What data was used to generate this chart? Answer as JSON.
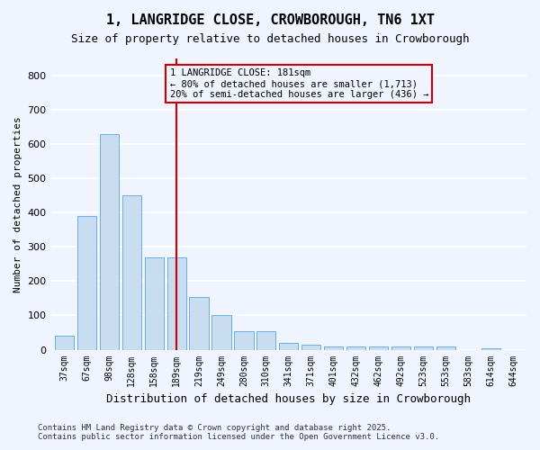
{
  "title": "1, LANGRIDGE CLOSE, CROWBOROUGH, TN6 1XT",
  "subtitle": "Size of property relative to detached houses in Crowborough",
  "xlabel": "Distribution of detached houses by size in Crowborough",
  "ylabel": "Number of detached properties",
  "categories": [
    "37sqm",
    "67sqm",
    "98sqm",
    "128sqm",
    "158sqm",
    "189sqm",
    "219sqm",
    "249sqm",
    "280sqm",
    "310sqm",
    "341sqm",
    "371sqm",
    "401sqm",
    "432sqm",
    "462sqm",
    "492sqm",
    "523sqm",
    "553sqm",
    "583sqm",
    "614sqm",
    "644sqm"
  ],
  "values": [
    40,
    390,
    630,
    450,
    270,
    270,
    155,
    100,
    55,
    55,
    20,
    15,
    10,
    10,
    10,
    10,
    10,
    10,
    0,
    5,
    0
  ],
  "bar_color": "#c9ddf0",
  "bar_edge_color": "#6aade4",
  "highlight_line_color": "#cc0000",
  "highlight_bin_index": 5,
  "annotation_text": "1 LANGRIDGE CLOSE: 181sqm\n← 80% of detached houses are smaller (1,713)\n20% of semi-detached houses are larger (436) →",
  "annotation_box_color": "#cc0000",
  "ylim": [
    0,
    850
  ],
  "yticks": [
    0,
    100,
    200,
    300,
    400,
    500,
    600,
    700,
    800
  ],
  "footer_line1": "Contains HM Land Registry data © Crown copyright and database right 2025.",
  "footer_line2": "Contains public sector information licensed under the Open Government Licence v3.0.",
  "bg_color": "#f0f4ff",
  "grid_color": "#ffffff"
}
